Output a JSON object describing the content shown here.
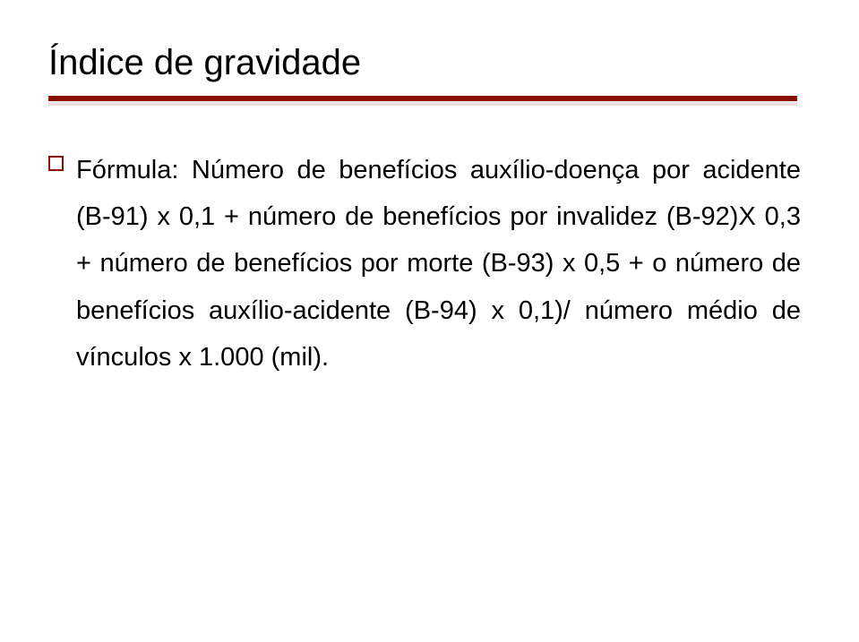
{
  "title": "Índice de gravidade",
  "bullet": {
    "text": "Fórmula: Número de benefícios auxílio-doença por acidente (B-91) x 0,1 + número de benefícios por invalidez (B-92)X 0,3 + número de benefícios por morte (B-93) x 0,5 + o número de benefícios auxílio-acidente (B-94) x 0,1)/ número médio de vínculos x 1.000 (mil)."
  },
  "colors": {
    "rule": "#8b0e04",
    "rule_shadow": "#d7c6c6",
    "text": "#000000",
    "background": "#ffffff"
  },
  "typography": {
    "title_fontsize": 40,
    "body_fontsize": 29,
    "line_height": 1.8
  }
}
